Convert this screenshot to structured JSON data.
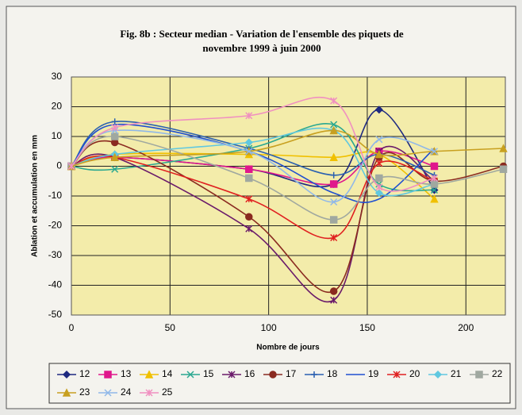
{
  "chart_data": {
    "type": "line",
    "title": [
      "Fig. 8b : Secteur median - Variation de l'ensemble des piquets de",
      "novembre 1999 à juin 2000"
    ],
    "x_label": "Nombre de jours",
    "y_label": "Ablation et accumulation en mm",
    "x": [
      0,
      22,
      90,
      133,
      156,
      184,
      219
    ],
    "xlim": [
      0,
      220
    ],
    "xticks": [
      0,
      50,
      100,
      150,
      200
    ],
    "ylim": [
      -50,
      30
    ],
    "yticks": [
      -50,
      -40,
      -30,
      -20,
      -10,
      0,
      10,
      20,
      30
    ],
    "grid": true,
    "series": [
      {
        "name": "12",
        "color": "#1f2a80",
        "marker": "diamond",
        "values": [
          0,
          3,
          -1,
          -6,
          19,
          -8,
          null
        ]
      },
      {
        "name": "13",
        "color": "#e0178c",
        "marker": "square",
        "values": [
          0,
          3,
          -1,
          -6,
          5,
          0,
          null
        ]
      },
      {
        "name": "14",
        "color": "#f0c000",
        "marker": "triangle",
        "values": [
          0,
          4,
          4,
          3,
          4,
          -11,
          null
        ]
      },
      {
        "name": "15",
        "color": "#2aa890",
        "marker": "x",
        "values": [
          0,
          -1,
          6,
          14,
          -6,
          -8,
          null
        ]
      },
      {
        "name": "16",
        "color": "#6a1a6a",
        "marker": "star",
        "values": [
          0,
          3,
          -21,
          -45,
          5,
          -5,
          null
        ]
      },
      {
        "name": "17",
        "color": "#8a2a20",
        "marker": "circle",
        "values": [
          0,
          8,
          -17,
          -42,
          3,
          -5,
          0
        ]
      },
      {
        "name": "18",
        "color": "#2a60b0",
        "marker": "plus",
        "values": [
          0,
          15,
          6,
          -3,
          4,
          -3,
          null
        ]
      },
      {
        "name": "19",
        "color": "#2050d0",
        "marker": "none",
        "values": [
          0,
          14,
          5,
          -9,
          -11,
          6,
          null
        ]
      },
      {
        "name": "20",
        "color": "#e02020",
        "marker": "star",
        "values": [
          0,
          3,
          -11,
          -24,
          1,
          -5,
          null
        ]
      },
      {
        "name": "21",
        "color": "#60c8e0",
        "marker": "diamond",
        "values": [
          0,
          4,
          8,
          12,
          -9,
          -6,
          null
        ]
      },
      {
        "name": "22",
        "color": "#a0a8a0",
        "marker": "square",
        "values": [
          0,
          10,
          -4,
          -18,
          -4,
          -6,
          -1
        ]
      },
      {
        "name": "23",
        "color": "#c8a020",
        "marker": "triangle",
        "values": [
          0,
          3,
          5,
          12,
          4,
          5,
          6
        ]
      },
      {
        "name": "24",
        "color": "#90b8e8",
        "marker": "x",
        "values": [
          0,
          12,
          5,
          -12,
          9,
          5,
          null
        ]
      },
      {
        "name": "25",
        "color": "#f090c0",
        "marker": "star",
        "values": [
          0,
          13,
          17,
          22,
          -7,
          -4,
          null
        ]
      }
    ]
  }
}
